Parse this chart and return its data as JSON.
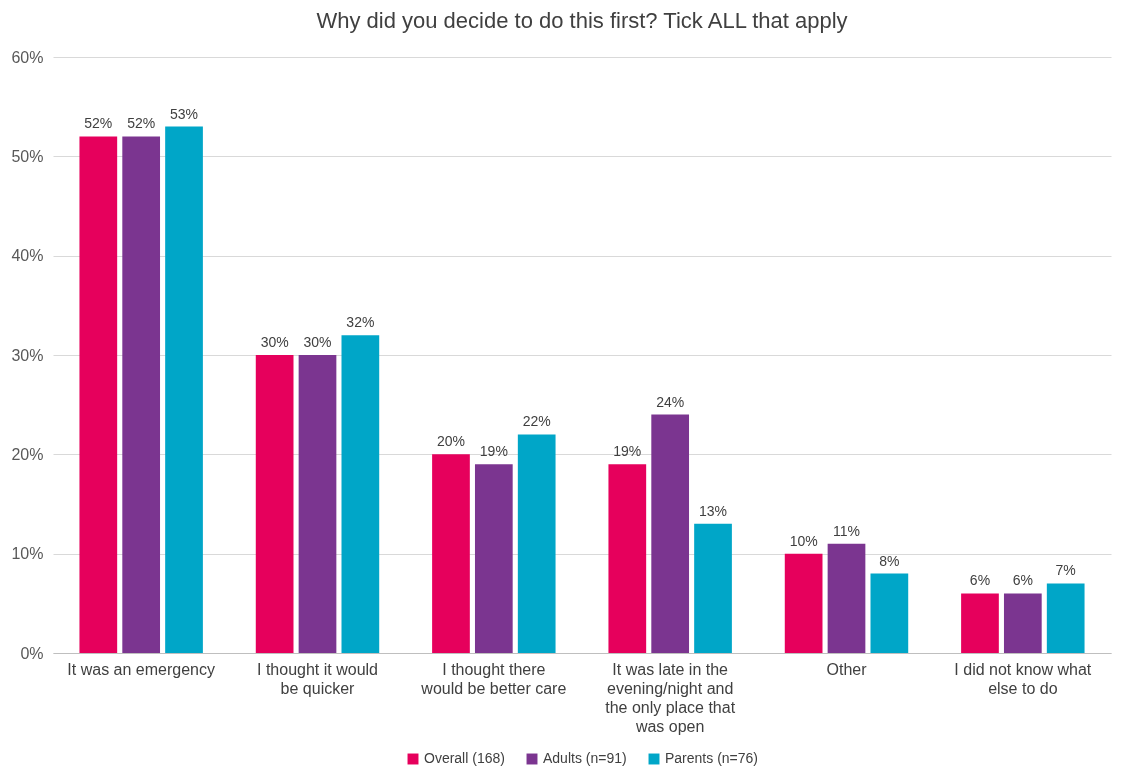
{
  "chart_data": {
    "type": "bar",
    "title": "Why did you decide to do this first? Tick ALL that apply",
    "categories": [
      "It was an emergency",
      "I thought it would be quicker",
      "I thought there would be better care",
      "It was late in the evening/night and the only place that was open",
      "Other",
      "I did not know what else to do"
    ],
    "series": [
      {
        "name": "Overall (168)",
        "color": "#e6005c",
        "values": [
          52,
          30,
          20,
          19,
          10,
          6
        ],
        "value_labels": [
          "52%",
          "30%",
          "20%",
          "19%",
          "10%",
          "6%"
        ]
      },
      {
        "name": "Adults (n=91)",
        "color": "#7b3590",
        "values": [
          52,
          30,
          19,
          24,
          11,
          6
        ],
        "value_labels": [
          "52%",
          "30%",
          "19%",
          "24%",
          "11%",
          "6%"
        ]
      },
      {
        "name": "Parents (n=76)",
        "color": "#00a6c8",
        "values": [
          53,
          32,
          22,
          13,
          8,
          7
        ],
        "value_labels": [
          "53%",
          "32%",
          "22%",
          "13%",
          "8%",
          "7%"
        ]
      }
    ],
    "ylim": [
      0,
      60
    ],
    "yticks": [
      {
        "value": 0,
        "label": "0%"
      },
      {
        "value": 10,
        "label": "10%"
      },
      {
        "value": 20,
        "label": "20%"
      },
      {
        "value": 30,
        "label": "30%"
      },
      {
        "value": 40,
        "label": "40%"
      },
      {
        "value": 50,
        "label": "50%"
      },
      {
        "value": 60,
        "label": "60%"
      }
    ],
    "grid": "y",
    "legend": "bottom"
  }
}
